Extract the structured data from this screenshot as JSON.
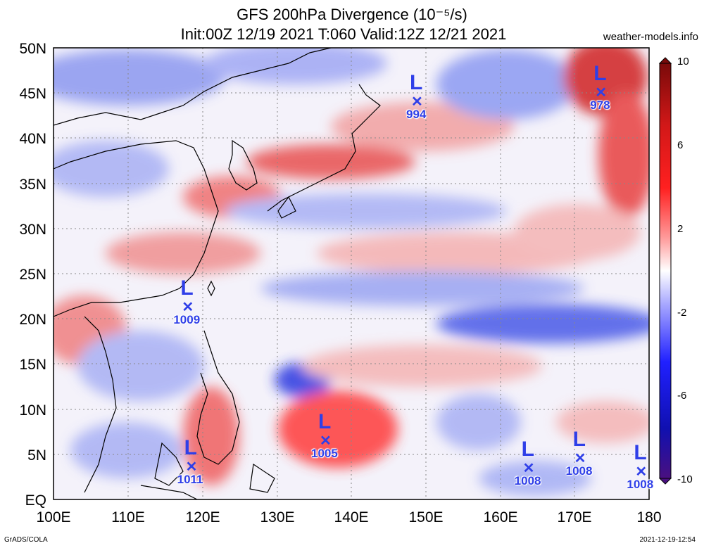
{
  "title_line1": "GFS 200hPa Divergence (10⁻⁵/s)",
  "title_line2": "Init:00Z 12/19 2021 T:060 Valid:12Z 12/21 2021",
  "site": "weather-models.info",
  "footer_left": "GrADS/COLA",
  "footer_right": "2021-12-19-12:54",
  "lat_labels": [
    "50N",
    "45N",
    "40N",
    "35N",
    "30N",
    "25N",
    "20N",
    "15N",
    "10N",
    "5N",
    "EQ"
  ],
  "lon_labels": [
    "100E",
    "110E",
    "120E",
    "130E",
    "140E",
    "150E",
    "160E",
    "170E",
    "180"
  ],
  "colorbar": {
    "labels": [
      "10",
      "6",
      "2",
      "-2",
      "-6",
      "-10"
    ],
    "high_color": "#d01010",
    "low_color": "#1010c8",
    "mid_color": "#ffffff"
  },
  "lows": [
    {
      "label": "L",
      "pressure": "994",
      "lon": 148.8,
      "lat": 44.0
    },
    {
      "label": "L",
      "pressure": "978",
      "lon": 173.5,
      "lat": 45.0
    },
    {
      "label": "L",
      "pressure": "1009",
      "lon": 118.0,
      "lat": 21.3
    },
    {
      "label": "L",
      "pressure": "1005",
      "lon": 136.5,
      "lat": 6.5
    },
    {
      "label": "L",
      "pressure": "1011",
      "lon": 118.5,
      "lat": 3.6
    },
    {
      "label": "L",
      "pressure": "1008",
      "lon": 163.8,
      "lat": 3.4
    },
    {
      "label": "L",
      "pressure": "1008",
      "lon": 170.7,
      "lat": 4.5
    },
    {
      "label": "L",
      "pressure": "1008",
      "lon": 178.9,
      "lat": 3.0
    }
  ],
  "map_extent": {
    "lon": [
      100,
      180
    ],
    "lat": [
      0,
      50
    ]
  }
}
